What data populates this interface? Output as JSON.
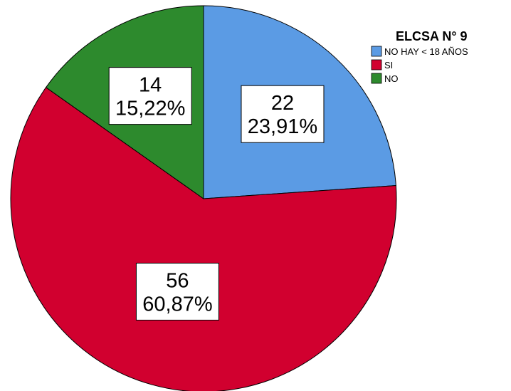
{
  "chart_data": {
    "type": "pie",
    "title": "",
    "legend": {
      "title": "ELCSA N° 9",
      "placement": "top-right"
    },
    "slices": [
      {
        "name": "NO HAY < 18 AÑOS",
        "value": 22,
        "percent_label": "23,91%",
        "color": "#5b9be4"
      },
      {
        "name": "SI",
        "value": 56,
        "percent_label": "60,87%",
        "color": "#d1002f"
      },
      {
        "name": "NO",
        "value": 14,
        "percent_label": "15,22%",
        "color": "#2d8a2d"
      }
    ]
  }
}
